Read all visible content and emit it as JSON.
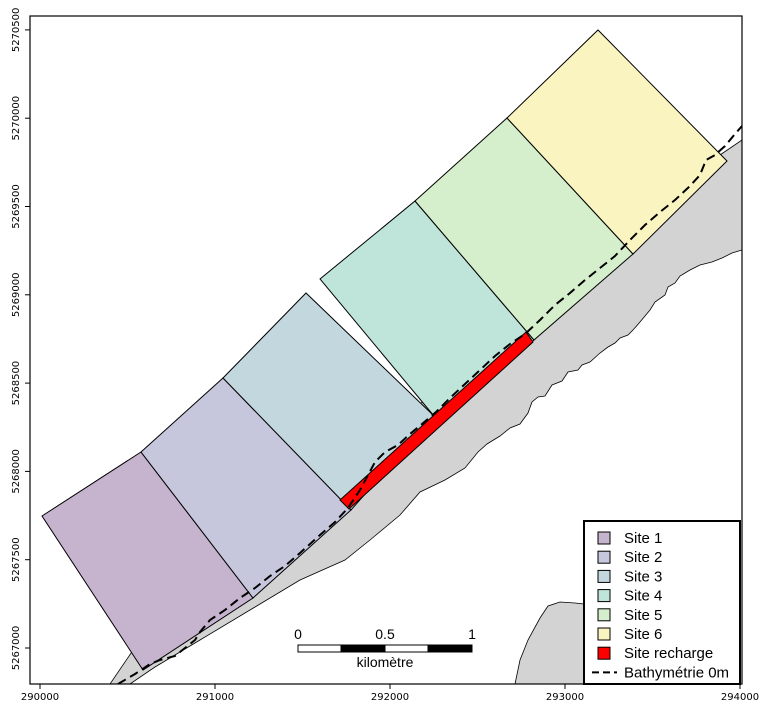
{
  "map": {
    "x_ticks": [
      "290000",
      "291000",
      "292000",
      "293000",
      "294000"
    ],
    "y_ticks": [
      "5267000",
      "5267500",
      "5268000",
      "5268500",
      "5269000",
      "5269500",
      "5270000",
      "5270500"
    ],
    "colors": {
      "site1": "#c6b3cd",
      "site2": "#c6c7dc",
      "site3": "#c2d7de",
      "site4": "#bfe4da",
      "site5": "#d5eecb",
      "site6": "#faf5c0",
      "recharge": "#ff0000",
      "land": "#d3d3d3"
    }
  },
  "scalebar": {
    "ticks": [
      "0",
      "0.5",
      "1"
    ],
    "unit": "kilomètre"
  },
  "legend": {
    "items": [
      {
        "label": "Site 1",
        "color": "#c6b3cd",
        "kind": "box"
      },
      {
        "label": "Site 2",
        "color": "#c6c7dc",
        "kind": "box"
      },
      {
        "label": "Site 3",
        "color": "#c2d7de",
        "kind": "box"
      },
      {
        "label": "Site 4",
        "color": "#bfe4da",
        "kind": "box"
      },
      {
        "label": "Site 5",
        "color": "#d5eecb",
        "kind": "box"
      },
      {
        "label": "Site 6",
        "color": "#faf5c0",
        "kind": "box"
      },
      {
        "label": "Site recharge",
        "color": "#ff0000",
        "kind": "box"
      },
      {
        "label": "Bathymétrie 0m",
        "color": "#000000",
        "kind": "dashed-line"
      }
    ]
  }
}
